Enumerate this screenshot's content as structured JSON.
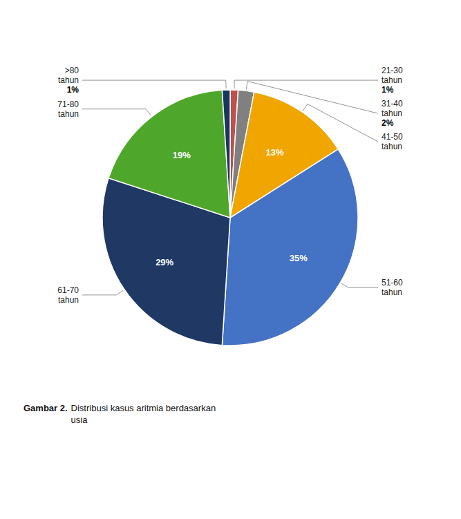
{
  "chart_data": {
    "type": "pie",
    "title": "Gambar 2.",
    "subtitle": "Distribusi kasus aritmia berdasarkan\nusia",
    "categories": [
      "21-30\ntahun",
      "31-40\ntahun",
      "41-50\ntahun",
      "51-60\ntahun",
      "61-70\ntahun",
      "71-80\ntahun",
      ">80\ntahun"
    ],
    "values": [
      1,
      2,
      13,
      35,
      29,
      19,
      1
    ],
    "value_labels": [
      "1%",
      "2%",
      "13%",
      "35%",
      "29%",
      "19%",
      "1%"
    ],
    "colors": [
      "#c0504d",
      "#808080",
      "#f0a500",
      "#4472c4",
      "#1f3864",
      "#4ea72a",
      "#17375e"
    ],
    "data_labels": true
  }
}
